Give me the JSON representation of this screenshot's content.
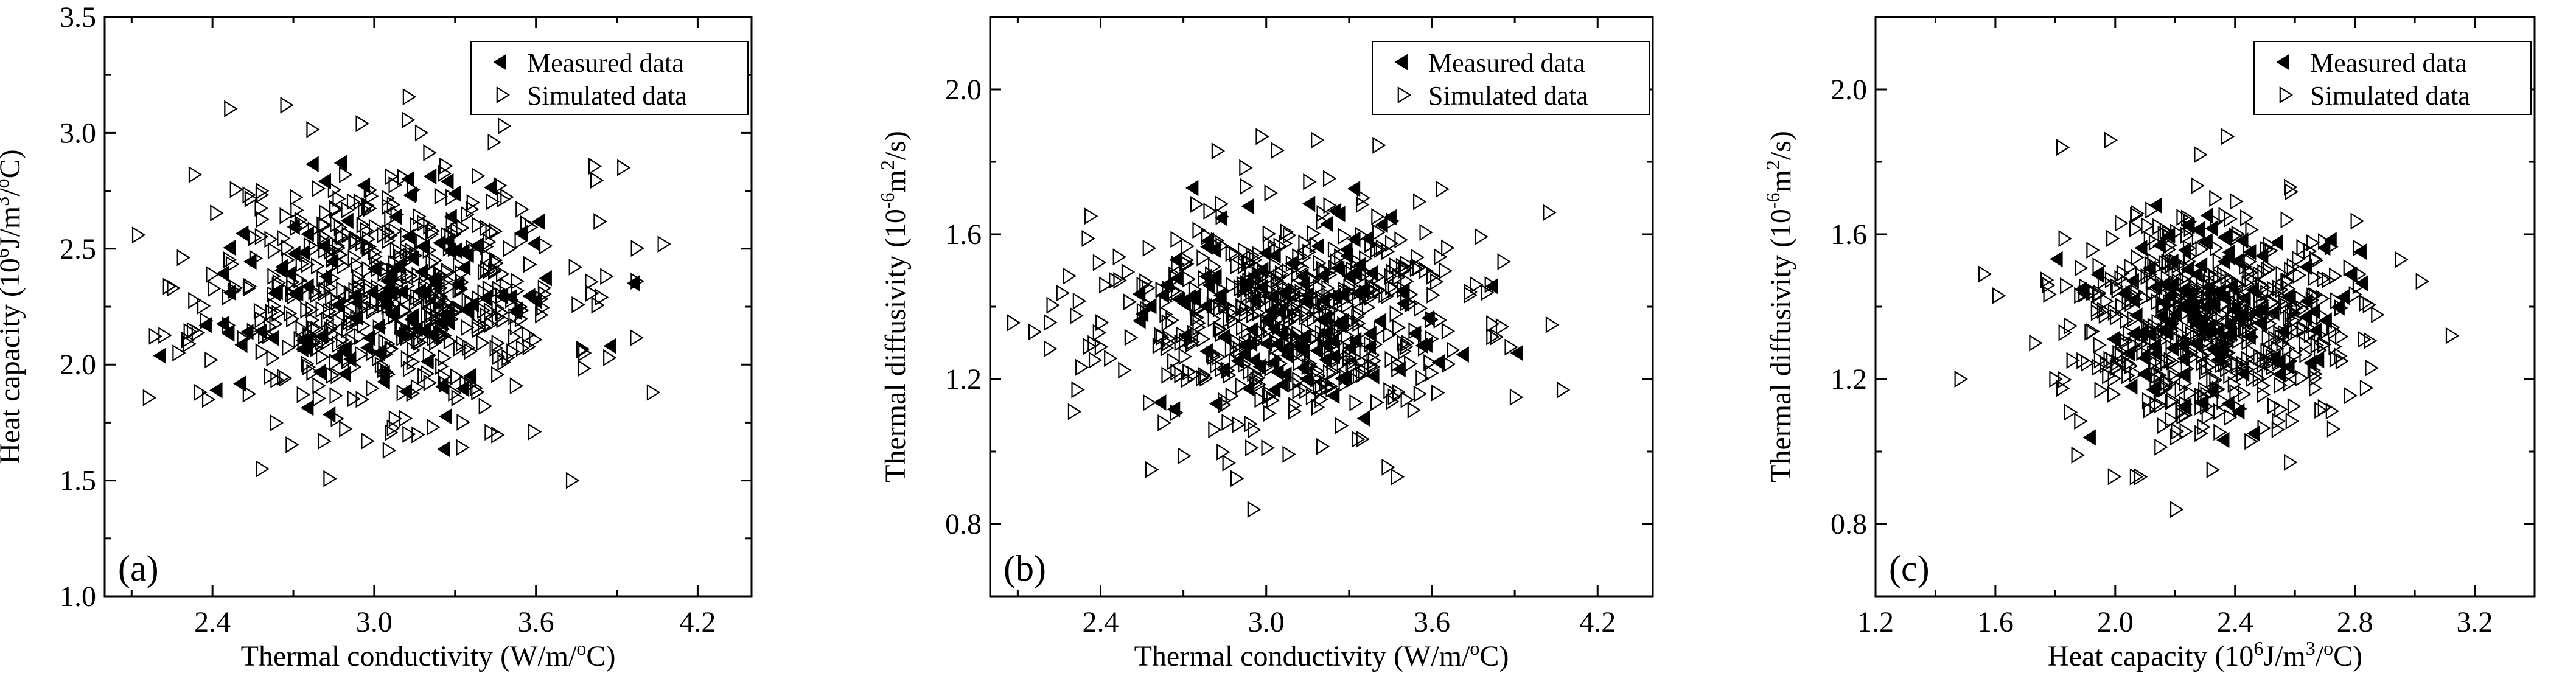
{
  "chart_data": [
    {
      "panel_label": "(a)",
      "type": "scatter",
      "xlabel": "Thermal conductivity (W/m/",
      "xlabel_sup": "o",
      "xlabel_end": "C)",
      "ylabel_pre": "Heat capacity (10",
      "ylabel_sup1": "6",
      "ylabel_mid": "J/m",
      "ylabel_sup2": "3",
      "ylabel_end": "/",
      "ylabel_sup3": "o",
      "ylabel_end2": "C)",
      "xlim": [
        2.0,
        4.4
      ],
      "ylim": [
        1.0,
        3.5
      ],
      "xticks": [
        "2.4",
        "3.0",
        "3.6",
        "4.2"
      ],
      "xtick_values": [
        2.4,
        3.0,
        3.6,
        4.2
      ],
      "yticks": [
        "1.0",
        "1.5",
        "2.0",
        "2.5",
        "3.0",
        "3.5"
      ],
      "ytick_values": [
        1.0,
        1.5,
        2.0,
        2.5,
        3.0,
        3.5
      ],
      "legend": [
        "Measured data",
        "Simulated data"
      ],
      "cloud": {
        "x_mean": 3.05,
        "x_sd": 0.33,
        "y_mean": 2.32,
        "y_sd": 0.27,
        "n_measured": 130,
        "n_simulated": 520,
        "seed": 11
      },
      "outliers": [
        [
          2.27,
          2.05
        ],
        [
          2.25,
          2.33
        ],
        [
          2.33,
          2.82
        ],
        [
          2.35,
          1.88
        ],
        [
          2.38,
          1.85
        ],
        [
          2.58,
          1.55
        ],
        [
          2.67,
          3.12
        ],
        [
          2.97,
          1.67
        ],
        [
          3.05,
          1.63
        ],
        [
          3.59,
          1.71
        ],
        [
          3.73,
          1.5
        ],
        [
          3.92,
          2.85
        ],
        [
          4.03,
          1.88
        ],
        [
          4.07,
          2.52
        ],
        [
          3.97,
          2.36
        ],
        [
          2.95,
          3.04
        ],
        [
          3.44,
          2.96
        ],
        [
          3.17,
          3.0
        ]
      ]
    },
    {
      "panel_label": "(b)",
      "type": "scatter",
      "xlabel": "Thermal conductivity (W/m/",
      "xlabel_sup": "o",
      "xlabel_end": "C)",
      "ylabel_pre": "Thermal diffusivity (10",
      "ylabel_sup1": "-6",
      "ylabel_mid": "m",
      "ylabel_sup2": "2",
      "ylabel_end": "/s)",
      "xlim": [
        2.0,
        4.4
      ],
      "ylim": [
        0.6,
        2.2
      ],
      "xticks": [
        "2.4",
        "3.0",
        "3.6",
        "4.2"
      ],
      "xtick_values": [
        2.4,
        3.0,
        3.6,
        4.2
      ],
      "yticks": [
        "0.8",
        "1.2",
        "1.6",
        "2.0"
      ],
      "ytick_values": [
        0.8,
        1.2,
        1.6,
        2.0
      ],
      "legend": [
        "Measured data",
        "Simulated data"
      ],
      "cloud": {
        "x_mean": 3.05,
        "x_sd": 0.33,
        "y_mean": 1.37,
        "y_sd": 0.15,
        "n_measured": 130,
        "n_simulated": 520,
        "seed": 23
      },
      "outliers": [
        [
          2.3,
          1.11
        ],
        [
          2.36,
          1.65
        ],
        [
          2.58,
          0.95
        ],
        [
          2.95,
          0.84
        ],
        [
          2.98,
          1.87
        ],
        [
          2.82,
          1.83
        ],
        [
          3.18,
          1.86
        ],
        [
          3.47,
          0.93
        ],
        [
          3.9,
          1.15
        ],
        [
          4.02,
          1.66
        ],
        [
          4.07,
          1.17
        ],
        [
          4.03,
          1.35
        ],
        [
          3.55,
          1.69
        ],
        [
          3.0,
          1.01
        ]
      ]
    },
    {
      "panel_label": "(c)",
      "type": "scatter",
      "xlabel": "Heat capacity (10",
      "xlabel_sup": "6",
      "xlabel_mid": "J/m",
      "xlabel_sup2": "3",
      "xlabel_end": "/",
      "xlabel_sup3": "o",
      "xlabel_end2": "C)",
      "ylabel_pre": "Thermal diffusivity (10",
      "ylabel_sup1": "-6",
      "ylabel_mid": "m",
      "ylabel_sup2": "2",
      "ylabel_end": "/s)",
      "xlim": [
        1.2,
        3.4
      ],
      "ylim": [
        0.6,
        2.2
      ],
      "xticks": [
        "1.2",
        "1.6",
        "2.0",
        "2.4",
        "2.8",
        "3.2"
      ],
      "xtick_values": [
        1.2,
        1.6,
        2.0,
        2.4,
        2.8,
        3.2
      ],
      "yticks": [
        "0.8",
        "1.2",
        "1.6",
        "2.0"
      ],
      "ytick_values": [
        0.8,
        1.2,
        1.6,
        2.0
      ],
      "legend": [
        "Measured data",
        "Simulated data"
      ],
      "cloud": {
        "x_mean": 2.32,
        "x_sd": 0.23,
        "y_mean": 1.37,
        "y_sd": 0.15,
        "n_measured": 130,
        "n_simulated": 520,
        "seed": 37
      },
      "outliers": [
        [
          1.48,
          1.2
        ],
        [
          1.56,
          1.49
        ],
        [
          1.82,
          1.84
        ],
        [
          1.98,
          1.86
        ],
        [
          2.2,
          0.84
        ],
        [
          2.08,
          0.93
        ],
        [
          2.28,
          1.82
        ],
        [
          2.37,
          1.87
        ],
        [
          2.58,
          1.73
        ],
        [
          3.12,
          1.32
        ],
        [
          3.02,
          1.47
        ],
        [
          2.95,
          1.53
        ],
        [
          2.58,
          0.97
        ],
        [
          1.87,
          0.99
        ]
      ]
    }
  ]
}
